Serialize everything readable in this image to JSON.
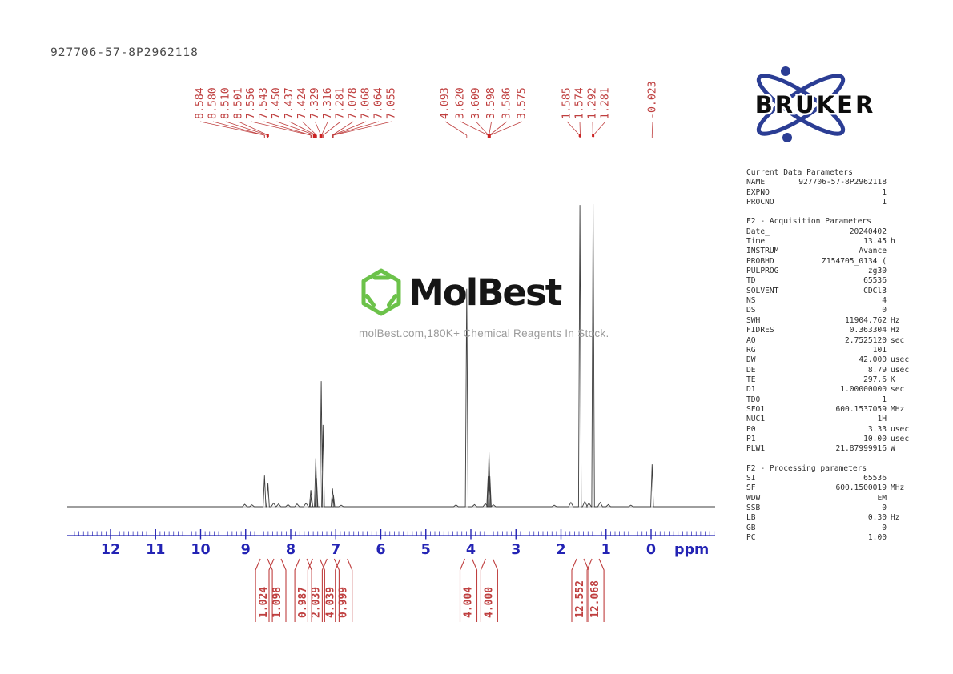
{
  "header": {
    "title": "927706-57-8P2962118"
  },
  "watermark": {
    "brand": "MolBest",
    "tagline": "molBest.com,180K+ Chemical Reagents In Stock.",
    "hex_color": "#6cc24a",
    "text_color": "#161616",
    "tagline_color": "#9b9b9b"
  },
  "bruker": {
    "word": "BRUKER",
    "blue": "#2b3d94"
  },
  "axis": {
    "unit_label": "ppm",
    "color": "#2323b4",
    "major_ticks": [
      12,
      11,
      10,
      9,
      8,
      7,
      6,
      5,
      4,
      3,
      2,
      1,
      0
    ],
    "range_max": 12.96,
    "range_min": -1.42
  },
  "peak_labels": {
    "color": "#bf3f3f",
    "square_color": "#cc2222",
    "groups": [
      {
        "labels": [
          {
            "text": "8.584",
            "ppm": 8.584
          },
          {
            "text": "8.580",
            "ppm": 8.58
          },
          {
            "text": "8.510",
            "ppm": 8.51
          },
          {
            "text": "8.501",
            "ppm": 8.501
          },
          {
            "text": "7.556",
            "ppm": 7.556
          },
          {
            "text": "7.543",
            "ppm": 7.543
          },
          {
            "text": "7.450",
            "ppm": 7.45
          },
          {
            "text": "7.437",
            "ppm": 7.437
          },
          {
            "text": "7.424",
            "ppm": 7.424
          },
          {
            "text": "7.329",
            "ppm": 7.329
          },
          {
            "text": "7.316",
            "ppm": 7.316
          },
          {
            "text": "7.281",
            "ppm": 7.281
          },
          {
            "text": "7.078",
            "ppm": 7.078
          },
          {
            "text": "7.068",
            "ppm": 7.068
          },
          {
            "text": "7.064",
            "ppm": 7.064
          },
          {
            "text": "7.055",
            "ppm": 7.055
          }
        ]
      },
      {
        "labels": [
          {
            "text": "4.093",
            "ppm": 4.093
          },
          {
            "text": "3.620",
            "ppm": 3.62
          },
          {
            "text": "3.609",
            "ppm": 3.609
          },
          {
            "text": "3.598",
            "ppm": 3.598
          },
          {
            "text": "3.586",
            "ppm": 3.586
          },
          {
            "text": "3.575",
            "ppm": 3.575
          }
        ]
      },
      {
        "labels": [
          {
            "text": "1.585",
            "ppm": 1.585
          },
          {
            "text": "1.574",
            "ppm": 1.574
          },
          {
            "text": "1.292",
            "ppm": 1.292
          },
          {
            "text": "1.281",
            "ppm": 1.281
          }
        ]
      },
      {
        "labels": [
          {
            "text": "-0.023",
            "ppm": -0.023
          }
        ]
      }
    ],
    "convergence_squares": [
      {
        "ppm": 8.51,
        "size": 3
      },
      {
        "ppm": 7.47,
        "size": 4
      },
      {
        "ppm": 7.33,
        "size": 4
      },
      {
        "ppm": 3.594,
        "size": 4
      },
      {
        "ppm": 1.578,
        "size": 3
      },
      {
        "ppm": 1.287,
        "size": 3
      }
    ]
  },
  "integrals": {
    "color": "#bf3f3f",
    "items": [
      {
        "value": "1.024",
        "ppm": 8.62
      },
      {
        "value": "1.098",
        "ppm": 8.32
      },
      {
        "value": "0.987",
        "ppm": 7.75
      },
      {
        "value": "2.039",
        "ppm": 7.46
      },
      {
        "value": "4.039",
        "ppm": 7.14
      },
      {
        "value": "0.999",
        "ppm": 6.85
      },
      {
        "value": "4.004",
        "ppm": 4.08
      },
      {
        "value": "4.000",
        "ppm": 3.62
      },
      {
        "value": "12.552",
        "ppm": 1.6
      },
      {
        "value": "12.068",
        "ppm": 1.26
      }
    ]
  },
  "params": {
    "sections": [
      {
        "header": "Current Data Parameters",
        "rows": [
          {
            "n": "NAME",
            "v": "927706-57-8P2962118",
            "u": ""
          },
          {
            "n": "EXPNO",
            "v": "1",
            "u": ""
          },
          {
            "n": "PROCNO",
            "v": "1",
            "u": ""
          }
        ]
      },
      {
        "header": "F2 - Acquisition Parameters",
        "rows": [
          {
            "n": "Date_",
            "v": "20240402",
            "u": ""
          },
          {
            "n": "Time",
            "v": "13.45",
            "u": "h"
          },
          {
            "n": "INSTRUM",
            "v": "Avance",
            "u": ""
          },
          {
            "n": "PROBHD",
            "v": "Z154705_0134 (",
            "u": ""
          },
          {
            "n": "PULPROG",
            "v": "zg30",
            "u": ""
          },
          {
            "n": "TD",
            "v": "65536",
            "u": ""
          },
          {
            "n": "SOLVENT",
            "v": "CDCl3",
            "u": ""
          },
          {
            "n": "NS",
            "v": "4",
            "u": ""
          },
          {
            "n": "DS",
            "v": "0",
            "u": ""
          },
          {
            "n": "SWH",
            "v": "11904.762",
            "u": "Hz"
          },
          {
            "n": "FIDRES",
            "v": "0.363304",
            "u": "Hz"
          },
          {
            "n": "AQ",
            "v": "2.7525120",
            "u": "sec"
          },
          {
            "n": "RG",
            "v": "101",
            "u": ""
          },
          {
            "n": "DW",
            "v": "42.000",
            "u": "usec"
          },
          {
            "n": "DE",
            "v": "8.79",
            "u": "usec"
          },
          {
            "n": "TE",
            "v": "297.6",
            "u": "K"
          },
          {
            "n": "D1",
            "v": "1.00000000",
            "u": "sec"
          },
          {
            "n": "TD0",
            "v": "1",
            "u": ""
          },
          {
            "n": "SFO1",
            "v": "600.1537059",
            "u": "MHz"
          },
          {
            "n": "NUC1",
            "v": "1H",
            "u": ""
          },
          {
            "n": "P0",
            "v": "3.33",
            "u": "usec"
          },
          {
            "n": "P1",
            "v": "10.00",
            "u": "usec"
          },
          {
            "n": "PLW1",
            "v": "21.87999916",
            "u": "W"
          }
        ]
      },
      {
        "header": "F2 - Processing parameters",
        "rows": [
          {
            "n": "SI",
            "v": "65536",
            "u": ""
          },
          {
            "n": "SF",
            "v": "600.1500019",
            "u": "MHz"
          },
          {
            "n": "WDW",
            "v": "EM",
            "u": ""
          },
          {
            "n": "SSB",
            "v": "0",
            "u": ""
          },
          {
            "n": "LB",
            "v": "0.30",
            "u": "Hz"
          },
          {
            "n": "GB",
            "v": "0",
            "u": ""
          },
          {
            "n": "PC",
            "v": "1.00",
            "u": ""
          }
        ]
      }
    ]
  },
  "chart_data": {
    "type": "line",
    "title": "927706-57-8P2962118",
    "xlabel": "ppm",
    "x_axis": {
      "min": -1.42,
      "max": 12.96,
      "reversed": true,
      "major_ticks": [
        12,
        11,
        10,
        9,
        8,
        7,
        6,
        5,
        4,
        3,
        2,
        1,
        0
      ]
    },
    "trace_color": "#3d3d3d",
    "peaks": [
      {
        "ppm": 8.582,
        "rel_height": 0.103
      },
      {
        "ppm": 8.505,
        "rel_height": 0.077
      },
      {
        "ppm": 7.553,
        "rel_height": 0.055
      },
      {
        "ppm": 7.54,
        "rel_height": 0.038
      },
      {
        "ppm": 7.444,
        "rel_height": 0.16
      },
      {
        "ppm": 7.428,
        "rel_height": 0.095
      },
      {
        "ppm": 7.322,
        "rel_height": 0.415
      },
      {
        "ppm": 7.283,
        "rel_height": 0.27
      },
      {
        "ppm": 7.072,
        "rel_height": 0.06
      },
      {
        "ppm": 7.052,
        "rel_height": 0.04
      },
      {
        "ppm": 4.093,
        "rel_height": 0.72
      },
      {
        "ppm": 3.618,
        "rel_height": 0.1
      },
      {
        "ppm": 3.598,
        "rel_height": 0.18
      },
      {
        "ppm": 3.578,
        "rel_height": 0.1
      },
      {
        "ppm": 1.58,
        "rel_height": 0.997
      },
      {
        "ppm": 1.287,
        "rel_height": 1.0
      },
      {
        "ppm": -0.023,
        "rel_height": 0.14
      }
    ],
    "minor_noise": [
      {
        "ppm": 9.02,
        "rel_height": 0.008
      },
      {
        "ppm": 8.86,
        "rel_height": 0.006
      },
      {
        "ppm": 8.38,
        "rel_height": 0.012
      },
      {
        "ppm": 8.27,
        "rel_height": 0.009
      },
      {
        "ppm": 8.06,
        "rel_height": 0.007
      },
      {
        "ppm": 7.86,
        "rel_height": 0.009
      },
      {
        "ppm": 7.66,
        "rel_height": 0.012
      },
      {
        "ppm": 6.88,
        "rel_height": 0.005
      },
      {
        "ppm": 4.33,
        "rel_height": 0.006
      },
      {
        "ppm": 3.92,
        "rel_height": 0.007
      },
      {
        "ppm": 3.68,
        "rel_height": 0.01
      },
      {
        "ppm": 3.5,
        "rel_height": 0.006
      },
      {
        "ppm": 2.15,
        "rel_height": 0.005
      },
      {
        "ppm": 1.78,
        "rel_height": 0.014
      },
      {
        "ppm": 1.47,
        "rel_height": 0.018
      },
      {
        "ppm": 1.38,
        "rel_height": 0.012
      },
      {
        "ppm": 1.13,
        "rel_height": 0.014
      },
      {
        "ppm": 0.95,
        "rel_height": 0.007
      },
      {
        "ppm": 0.45,
        "rel_height": 0.005
      }
    ],
    "peak_list_ppm": [
      8.584,
      8.58,
      8.51,
      8.501,
      7.556,
      7.543,
      7.45,
      7.437,
      7.424,
      7.329,
      7.316,
      7.281,
      7.078,
      7.068,
      7.064,
      7.055,
      4.093,
      3.62,
      3.609,
      3.598,
      3.586,
      3.575,
      1.585,
      1.574,
      1.292,
      1.281,
      -0.023
    ],
    "integral_values": [
      1.024,
      1.098,
      0.987,
      2.039,
      4.039,
      0.999,
      4.004,
      4.0,
      12.552,
      12.068
    ]
  }
}
